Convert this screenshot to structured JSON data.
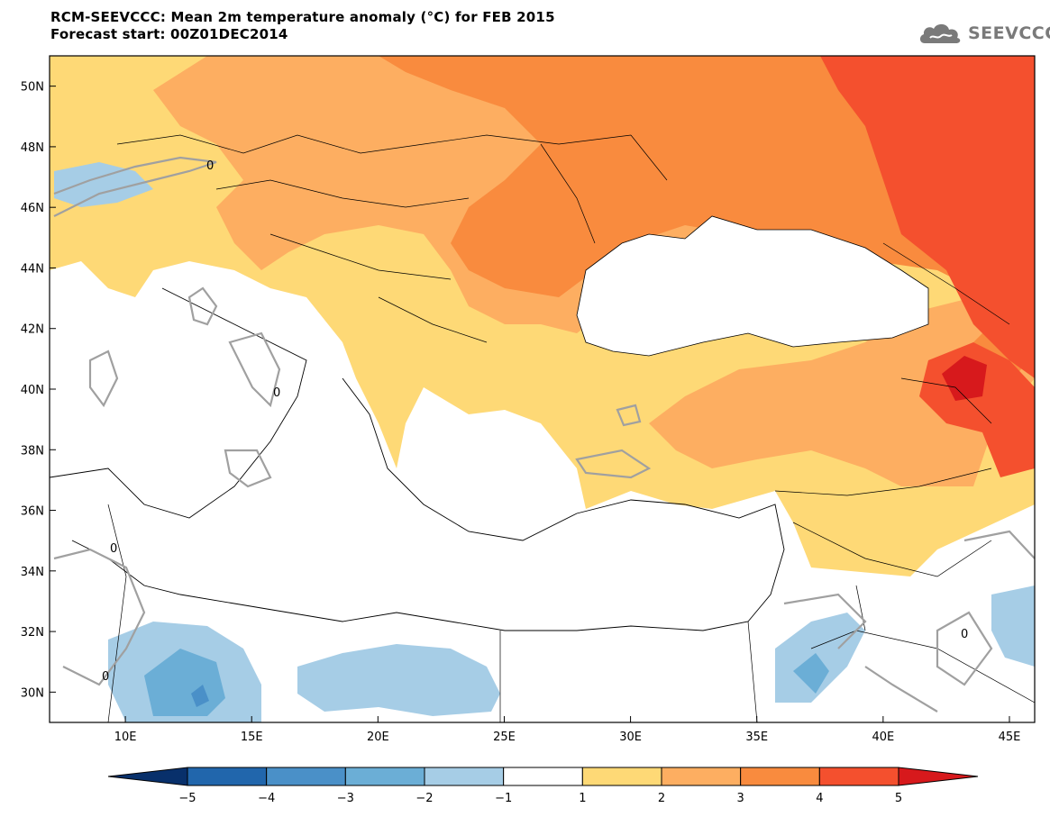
{
  "title": {
    "line1": "RCM-SEEVCCC: Mean 2m temperature anomaly (°C) for FEB 2015",
    "line2": "Forecast start: 00Z01DEC2014"
  },
  "logo": {
    "text": "SEEVCCC",
    "icon": "cloud-icon"
  },
  "map": {
    "lon_range": [
      7,
      46
    ],
    "lat_range": [
      29,
      51
    ],
    "lat_ticks": [
      "50N",
      "48N",
      "46N",
      "44N",
      "42N",
      "40N",
      "38N",
      "36N",
      "34N",
      "32N",
      "30N"
    ],
    "lon_ticks": [
      "10E",
      "15E",
      "20E",
      "25E",
      "30E",
      "35E",
      "40E",
      "45E"
    ],
    "contour_label": "0"
  },
  "colorbar": {
    "labels": [
      "−5",
      "−4",
      "−3",
      "−2",
      "−1",
      "1",
      "2",
      "3",
      "4",
      "5"
    ],
    "colors": [
      "#08306b",
      "#2166ac",
      "#4a90c8",
      "#6baed6",
      "#a6cde6",
      "#ffffff",
      "#fed976",
      "#fdae61",
      "#f98b3e",
      "#f4502e",
      "#d7191c"
    ]
  },
  "anomaly_colors": {
    "warm1": "#fed976",
    "warm2": "#fdae61",
    "warm3": "#f98b3e",
    "warm4": "#f4502e",
    "warm5": "#d7191c",
    "cool1": "#a6cde6",
    "cool2": "#6baed6",
    "cool3": "#4a90c8"
  }
}
